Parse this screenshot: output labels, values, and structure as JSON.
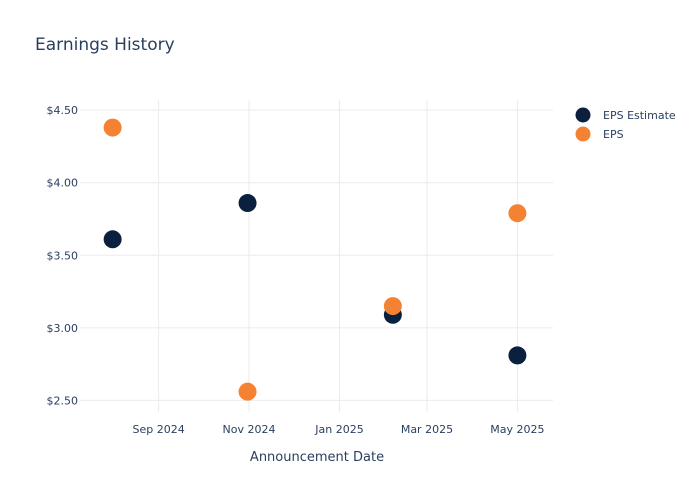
{
  "chart_data": {
    "type": "scatter",
    "title": "Earnings History",
    "xlabel": "Announcement Date",
    "ylabel": "",
    "ylim": [
      2.42,
      4.57
    ],
    "xlim": [
      "2024-07-10",
      "2025-05-25"
    ],
    "x_ticks": [
      {
        "date": "2024-09-01",
        "label": "Sep 2024"
      },
      {
        "date": "2024-11-01",
        "label": "Nov 2024"
      },
      {
        "date": "2025-01-01",
        "label": "Jan 2025"
      },
      {
        "date": "2025-03-01",
        "label": "Mar 2025"
      },
      {
        "date": "2025-05-01",
        "label": "May 2025"
      }
    ],
    "y_ticks": [
      {
        "value": 2.5,
        "label": "$2.50"
      },
      {
        "value": 3.0,
        "label": "$3.00"
      },
      {
        "value": 3.5,
        "label": "$3.50"
      },
      {
        "value": 4.0,
        "label": "$4.00"
      },
      {
        "value": 4.5,
        "label": "$4.50"
      }
    ],
    "grid": true,
    "legend_position": "top-right",
    "series": [
      {
        "name": "EPS Estimate",
        "color": "#0b1f3f",
        "x": [
          "2024-08-01",
          "2024-10-31",
          "2025-02-06",
          "2025-05-01"
        ],
        "y": [
          3.61,
          3.86,
          3.09,
          2.81
        ]
      },
      {
        "name": "EPS",
        "color": "#f58232",
        "x": [
          "2024-08-01",
          "2024-10-31",
          "2025-02-06",
          "2025-05-01"
        ],
        "y": [
          4.38,
          2.56,
          3.15,
          3.79
        ]
      }
    ]
  }
}
